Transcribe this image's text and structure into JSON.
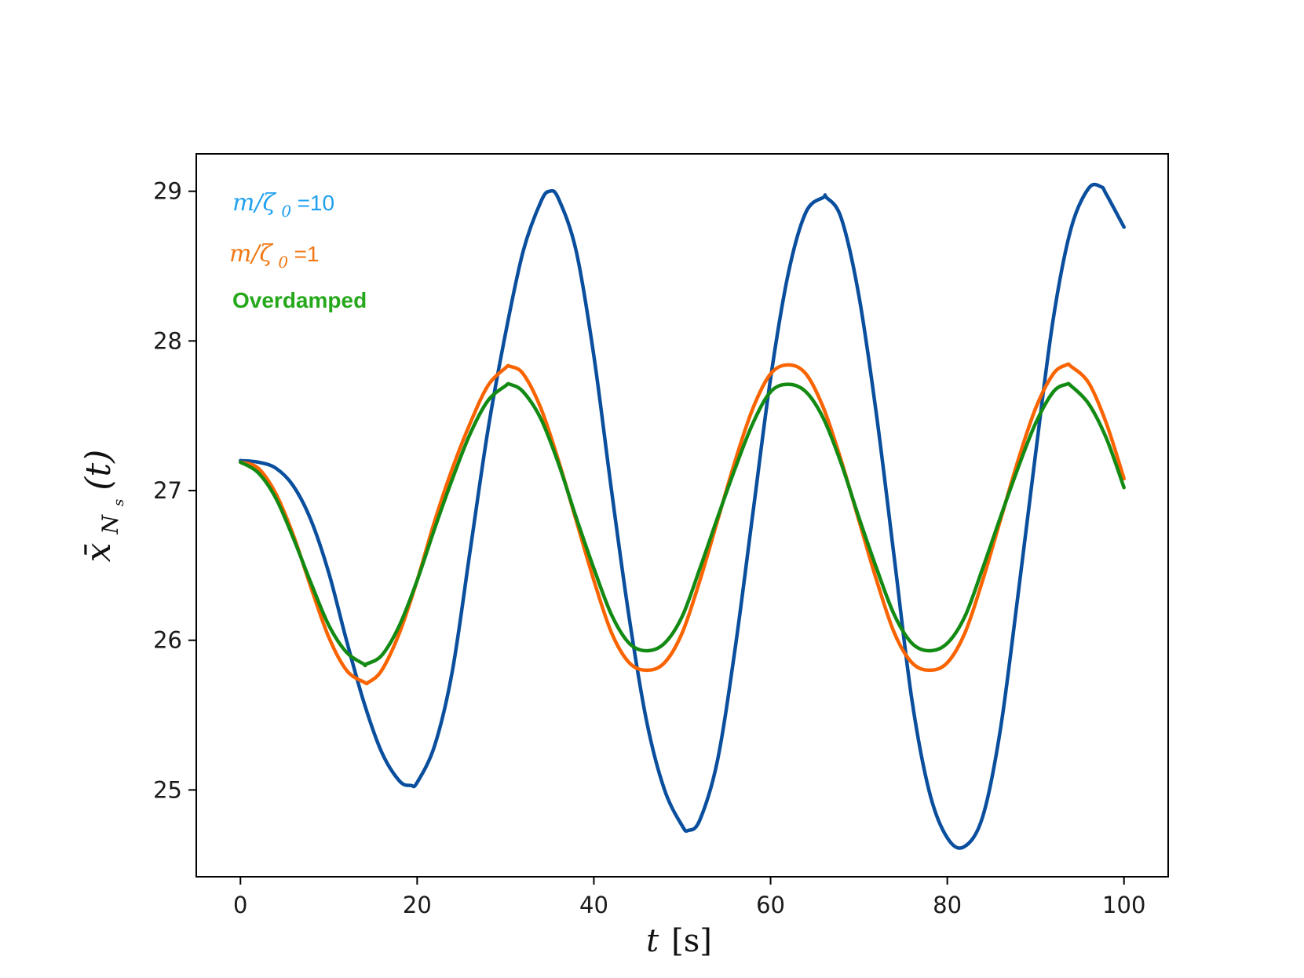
{
  "chart_data": {
    "type": "line",
    "title": "",
    "xlabel": {
      "var": "t",
      "unit": "[s]"
    },
    "ylabel": {
      "base": "x̄",
      "sub": "N",
      "subsub": "s",
      "arg": "(t)"
    },
    "xlim": [
      -5,
      105
    ],
    "ylim": [
      24.42,
      29.25
    ],
    "xticks": [
      0,
      20,
      40,
      60,
      80,
      100
    ],
    "xtick_labels": [
      "0",
      "20",
      "40",
      "60",
      "80",
      "100"
    ],
    "yticks": [
      25,
      26,
      27,
      28,
      29
    ],
    "ytick_labels": [
      "25",
      "26",
      "27",
      "28",
      "29"
    ],
    "grid": false,
    "legend_placement": "top-left",
    "series": [
      {
        "name": "m/ζ0 =10",
        "legend": {
          "math": "m/ζ",
          "sub": "0",
          "rest": " =10"
        },
        "line_color": "#0a4f9e",
        "label_color": "#1fa0ee",
        "x": [
          0,
          2,
          4,
          6,
          8,
          10,
          12,
          14,
          16,
          18,
          19.3,
          20,
          22,
          24,
          26,
          28,
          30,
          32,
          34,
          35,
          36,
          38,
          40,
          42,
          44,
          46,
          48,
          50,
          50.7,
          52,
          54,
          56,
          58,
          60,
          62,
          64,
          66,
          66.3,
          68,
          70,
          72,
          74,
          76,
          78,
          80,
          81.9,
          84,
          86,
          88,
          90,
          92,
          94,
          96,
          97.4,
          98,
          100
        ],
        "y": [
          27.2,
          27.19,
          27.15,
          27.03,
          26.8,
          26.45,
          26.0,
          25.58,
          25.25,
          25.06,
          25.03,
          25.05,
          25.3,
          25.8,
          26.6,
          27.4,
          28.05,
          28.6,
          28.93,
          29.0,
          28.95,
          28.6,
          27.9,
          27.0,
          26.15,
          25.45,
          25.0,
          24.76,
          24.73,
          24.8,
          25.2,
          25.95,
          26.85,
          27.75,
          28.45,
          28.86,
          28.96,
          28.96,
          28.82,
          28.3,
          27.5,
          26.55,
          25.6,
          24.98,
          24.68,
          24.62,
          24.82,
          25.4,
          26.3,
          27.25,
          28.15,
          28.75,
          29.02,
          29.03,
          28.98,
          28.76
        ]
      },
      {
        "name": "m/ζ0 =1",
        "legend": {
          "math": "m/ζ",
          "sub": "0",
          "rest": " =1"
        },
        "line_color": "#fa6400",
        "label_color": "#f07814",
        "x": [
          0,
          2,
          4,
          6,
          8,
          10,
          12,
          14,
          14.5,
          16,
          18,
          20,
          22,
          24,
          26,
          28,
          30,
          30.5,
          32,
          34,
          36,
          38,
          40,
          42,
          44,
          46,
          48,
          50,
          52,
          54,
          56,
          58,
          60,
          62,
          64,
          66,
          68,
          70,
          72,
          74,
          76,
          78,
          80,
          82,
          84,
          86,
          88,
          90,
          92,
          93.5,
          94,
          96,
          98,
          100
        ],
        "y": [
          27.19,
          27.15,
          26.98,
          26.7,
          26.35,
          26.02,
          25.8,
          25.72,
          25.72,
          25.8,
          26.05,
          26.4,
          26.8,
          27.15,
          27.45,
          27.7,
          27.82,
          27.83,
          27.78,
          27.55,
          27.2,
          26.8,
          26.4,
          26.05,
          25.85,
          25.8,
          25.85,
          26.05,
          26.4,
          26.8,
          27.2,
          27.55,
          27.78,
          27.84,
          27.78,
          27.55,
          27.2,
          26.8,
          26.4,
          26.05,
          25.85,
          25.8,
          25.85,
          26.05,
          26.4,
          26.8,
          27.2,
          27.55,
          27.78,
          27.84,
          27.83,
          27.72,
          27.45,
          27.08
        ]
      },
      {
        "name": "Overdamped",
        "legend": {
          "text": "Overdamped"
        },
        "line_color": "#138a13",
        "label_color": "#25a81a",
        "x": [
          0,
          2,
          4,
          6,
          8,
          10,
          12,
          14,
          14.2,
          16,
          18,
          20,
          22,
          24,
          26,
          28,
          30,
          30.5,
          32,
          34,
          36,
          38,
          40,
          42,
          44,
          46,
          48,
          50,
          52,
          54,
          56,
          58,
          60,
          62,
          64,
          66,
          68,
          70,
          72,
          74,
          76,
          78,
          80,
          82,
          84,
          86,
          88,
          90,
          92,
          93.5,
          94,
          96,
          98,
          100
        ],
        "y": [
          27.19,
          27.12,
          26.95,
          26.68,
          26.38,
          26.1,
          25.92,
          25.84,
          25.84,
          25.9,
          26.1,
          26.4,
          26.75,
          27.08,
          27.38,
          27.6,
          27.7,
          27.71,
          27.66,
          27.48,
          27.18,
          26.82,
          26.48,
          26.17,
          25.98,
          25.93,
          25.98,
          26.16,
          26.48,
          26.82,
          27.15,
          27.45,
          27.66,
          27.71,
          27.66,
          27.48,
          27.18,
          26.82,
          26.48,
          26.17,
          25.98,
          25.93,
          25.98,
          26.16,
          26.48,
          26.82,
          27.15,
          27.45,
          27.66,
          27.71,
          27.7,
          27.58,
          27.35,
          27.02
        ]
      }
    ]
  }
}
